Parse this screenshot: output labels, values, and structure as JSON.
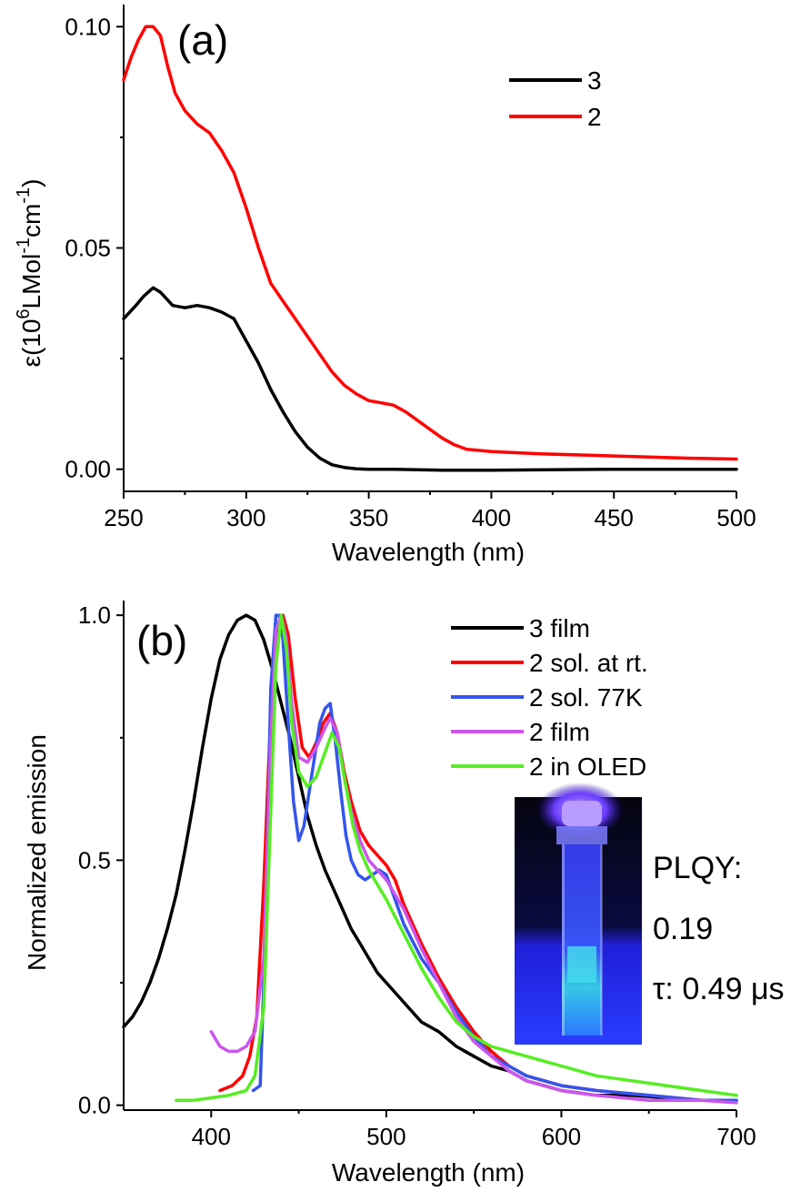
{
  "chart_data": [
    {
      "type": "line",
      "panel_label": "(a)",
      "xlabel": "Wavelength (nm)",
      "ylabel_main": "ε(10",
      "ylabel_sup1": "6",
      "ylabel_mid": "LMol",
      "ylabel_sup2": "-1",
      "ylabel_mid2": "cm",
      "ylabel_sup3": "-1",
      "ylabel_end": ")",
      "xlim": [
        250,
        500
      ],
      "ylim": [
        -0.005,
        0.105
      ],
      "xticks": [
        250,
        300,
        350,
        400,
        450,
        500
      ],
      "yticks": [
        0.0,
        0.05,
        0.1
      ],
      "ytick_labels": [
        "0.00",
        "0.05",
        "0.10"
      ],
      "legend_position": "top-right",
      "series": [
        {
          "name": "3",
          "color": "#000000",
          "x": [
            250,
            255,
            258,
            262,
            265,
            270,
            275,
            280,
            285,
            290,
            295,
            300,
            305,
            310,
            315,
            320,
            325,
            330,
            335,
            340,
            345,
            350,
            360,
            380,
            400,
            450,
            500
          ],
          "y": [
            0.034,
            0.037,
            0.039,
            0.041,
            0.04,
            0.037,
            0.0365,
            0.037,
            0.0365,
            0.0355,
            0.034,
            0.029,
            0.024,
            0.018,
            0.013,
            0.0085,
            0.005,
            0.0025,
            0.001,
            0.0004,
            0.0001,
            0.0,
            0.0,
            -0.0002,
            -0.0002,
            0.0,
            0.0
          ]
        },
        {
          "name": "2",
          "color": "#ff0000",
          "x": [
            250,
            253,
            256,
            259,
            262,
            265,
            268,
            271,
            275,
            280,
            285,
            290,
            295,
            300,
            305,
            310,
            315,
            320,
            325,
            330,
            335,
            340,
            345,
            350,
            355,
            360,
            365,
            370,
            375,
            380,
            385,
            390,
            400,
            420,
            450,
            480,
            500
          ],
          "y": [
            0.088,
            0.093,
            0.097,
            0.1,
            0.1,
            0.098,
            0.091,
            0.085,
            0.081,
            0.078,
            0.076,
            0.072,
            0.067,
            0.059,
            0.05,
            0.042,
            0.038,
            0.034,
            0.03,
            0.026,
            0.022,
            0.019,
            0.017,
            0.0155,
            0.015,
            0.0145,
            0.013,
            0.011,
            0.009,
            0.007,
            0.0055,
            0.0045,
            0.004,
            0.0035,
            0.003,
            0.0025,
            0.0023
          ]
        }
      ]
    },
    {
      "type": "line",
      "panel_label": "(b)",
      "xlabel": "Wavelength (nm)",
      "ylabel": "Normalized emission",
      "xlim": [
        350,
        700
      ],
      "ylim": [
        -0.01,
        1.03
      ],
      "xticks": [
        400,
        500,
        600,
        700
      ],
      "yticks": [
        0.0,
        0.5,
        1.0
      ],
      "ytick_labels": [
        "0.0",
        "0.5",
        "1.0"
      ],
      "legend_position": "top-right",
      "annotation_lines": [
        "PLQY:",
        "0.19",
        "τ: 0.49 μs"
      ],
      "photo_inset": "glowing-cuvette-photo",
      "series": [
        {
          "name": "3 film",
          "color": "#000000",
          "x": [
            350,
            355,
            360,
            365,
            370,
            375,
            380,
            385,
            390,
            395,
            400,
            405,
            410,
            415,
            420,
            425,
            430,
            435,
            440,
            445,
            450,
            455,
            460,
            465,
            470,
            475,
            480,
            485,
            490,
            495,
            500,
            510,
            520,
            530,
            540,
            550,
            560,
            570,
            580,
            590,
            600,
            620,
            640,
            660,
            680,
            700
          ],
          "y": [
            0.16,
            0.18,
            0.21,
            0.25,
            0.3,
            0.36,
            0.43,
            0.52,
            0.62,
            0.73,
            0.83,
            0.91,
            0.96,
            0.99,
            1.0,
            0.99,
            0.95,
            0.89,
            0.82,
            0.75,
            0.67,
            0.59,
            0.53,
            0.48,
            0.44,
            0.4,
            0.36,
            0.33,
            0.3,
            0.27,
            0.25,
            0.21,
            0.17,
            0.15,
            0.12,
            0.1,
            0.08,
            0.07,
            0.05,
            0.04,
            0.03,
            0.02,
            0.02,
            0.015,
            0.01,
            0.01
          ]
        },
        {
          "name": "2 sol. at rt.",
          "color": "#ff0000",
          "x": [
            405,
            412,
            418,
            422,
            426,
            430,
            434,
            438,
            441,
            444,
            448,
            452,
            456,
            460,
            464,
            468,
            472,
            476,
            480,
            485,
            490,
            495,
            500,
            505,
            510,
            520,
            530,
            540,
            550,
            560,
            570,
            580,
            600,
            620,
            650,
            680,
            700
          ],
          "y": [
            0.03,
            0.04,
            0.06,
            0.1,
            0.18,
            0.45,
            0.8,
            0.98,
            1.0,
            0.96,
            0.83,
            0.73,
            0.71,
            0.74,
            0.78,
            0.8,
            0.76,
            0.68,
            0.62,
            0.56,
            0.53,
            0.51,
            0.49,
            0.46,
            0.41,
            0.33,
            0.26,
            0.2,
            0.15,
            0.11,
            0.08,
            0.06,
            0.04,
            0.03,
            0.02,
            0.01,
            0.01
          ]
        },
        {
          "name": "2 sol. 77K",
          "color": "#3355ee",
          "x": [
            424,
            428,
            431,
            434,
            437,
            439,
            441,
            444,
            447,
            450,
            453,
            456,
            459,
            462,
            465,
            468,
            471,
            474,
            477,
            480,
            484,
            488,
            492,
            496,
            500,
            505,
            510,
            520,
            530,
            540,
            550,
            560,
            570,
            580,
            600,
            620,
            650,
            680,
            700
          ],
          "y": [
            0.03,
            0.04,
            0.35,
            0.85,
            1.0,
            1.0,
            0.95,
            0.78,
            0.62,
            0.54,
            0.57,
            0.64,
            0.71,
            0.78,
            0.81,
            0.82,
            0.74,
            0.64,
            0.55,
            0.5,
            0.47,
            0.46,
            0.47,
            0.48,
            0.47,
            0.42,
            0.37,
            0.3,
            0.25,
            0.19,
            0.14,
            0.1,
            0.08,
            0.06,
            0.04,
            0.03,
            0.02,
            0.01,
            0.01
          ]
        },
        {
          "name": "2 film",
          "color": "#cc55ee",
          "x": [
            400,
            405,
            410,
            415,
            420,
            425,
            430,
            434,
            437,
            440,
            443,
            446,
            450,
            455,
            460,
            465,
            468,
            472,
            476,
            480,
            485,
            490,
            495,
            500,
            510,
            520,
            530,
            540,
            550,
            560,
            570,
            580,
            600,
            620,
            650,
            680,
            700
          ],
          "y": [
            0.15,
            0.12,
            0.11,
            0.11,
            0.12,
            0.15,
            0.3,
            0.75,
            0.97,
            1.0,
            0.95,
            0.82,
            0.71,
            0.7,
            0.73,
            0.77,
            0.79,
            0.76,
            0.67,
            0.6,
            0.54,
            0.5,
            0.48,
            0.46,
            0.4,
            0.32,
            0.25,
            0.18,
            0.13,
            0.1,
            0.07,
            0.05,
            0.03,
            0.02,
            0.01,
            0.01,
            0.005
          ]
        },
        {
          "name": "2 in OLED",
          "color": "#55ee22",
          "x": [
            380,
            390,
            400,
            410,
            420,
            425,
            430,
            434,
            437,
            440,
            443,
            446,
            450,
            455,
            460,
            465,
            469,
            473,
            477,
            481,
            485,
            490,
            495,
            500,
            510,
            520,
            530,
            540,
            550,
            560,
            570,
            580,
            590,
            600,
            620,
            640,
            660,
            680,
            700
          ],
          "y": [
            0.01,
            0.01,
            0.015,
            0.02,
            0.03,
            0.06,
            0.2,
            0.6,
            0.9,
            1.0,
            0.93,
            0.78,
            0.68,
            0.65,
            0.67,
            0.72,
            0.76,
            0.73,
            0.65,
            0.57,
            0.52,
            0.48,
            0.45,
            0.42,
            0.35,
            0.28,
            0.22,
            0.17,
            0.14,
            0.12,
            0.11,
            0.1,
            0.09,
            0.08,
            0.06,
            0.05,
            0.04,
            0.03,
            0.02
          ]
        }
      ]
    }
  ]
}
